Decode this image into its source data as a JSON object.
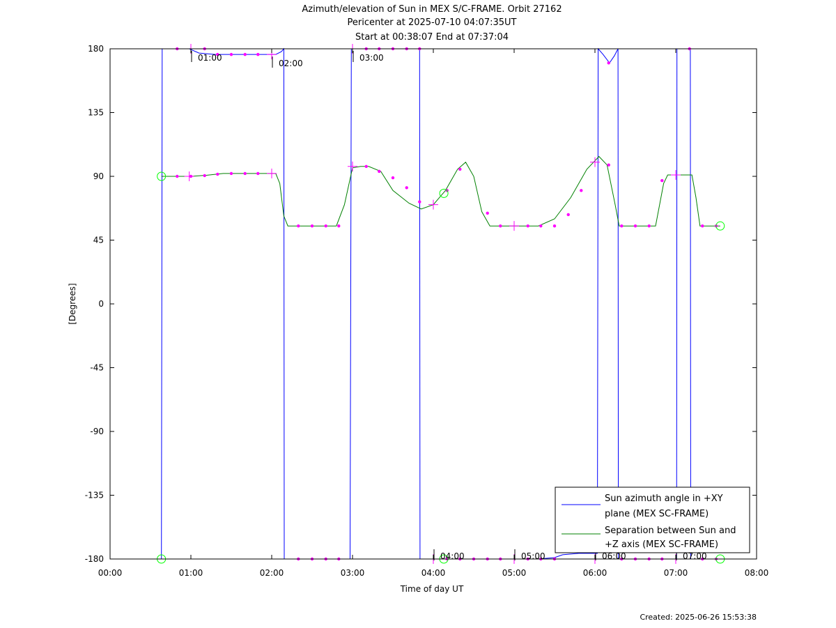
{
  "chart_data": {
    "type": "line",
    "title_lines": [
      "Azimuth/elevation of Sun in MEX S/C-FRAME.  Orbit 27162",
      "Pericenter at 2025-07-10 04:07:35UT",
      "Start at 00:38:07 End at 07:37:04"
    ],
    "xlabel": "Time of day UT",
    "ylabel": "[Degrees]",
    "xlim": [
      0,
      8
    ],
    "ylim": [
      -180,
      180
    ],
    "x_ticks": [
      0,
      1,
      2,
      3,
      4,
      5,
      6,
      7,
      8
    ],
    "x_tick_labels": [
      "00:00",
      "01:00",
      "02:00",
      "03:00",
      "04:00",
      "05:00",
      "06:00",
      "07:00",
      "08:00"
    ],
    "y_ticks": [
      180,
      135,
      90,
      45,
      0,
      -45,
      -90,
      -135,
      -180
    ],
    "y_tick_labels": [
      "180",
      "135",
      "90",
      "45",
      "0",
      "-45",
      "-90",
      "-135",
      "-180"
    ],
    "grid": false,
    "legend_position": "bottom-right",
    "hour_annotations": [
      {
        "label": "01:00",
        "x": 1.0,
        "y": 180
      },
      {
        "label": "02:00",
        "x": 2.0,
        "y": 176
      },
      {
        "label": "03:00",
        "x": 3.0,
        "y": 180
      },
      {
        "label": "04:00",
        "x": 4.0,
        "y": -180
      },
      {
        "label": "05:00",
        "x": 5.0,
        "y": -180
      },
      {
        "label": "06:00",
        "x": 6.0,
        "y": -180
      },
      {
        "label": "07:00",
        "x": 7.0,
        "y": -180
      }
    ],
    "series": [
      {
        "name": "Sun azimuth angle in +XY plane (MEX SC-FRAME)",
        "name_lines": [
          "Sun azimuth angle in +XY",
          "plane (MEX SC-FRAME)"
        ],
        "color": "#0000ff",
        "points": [
          [
            0.635,
            -180
          ],
          [
            0.645,
            180
          ],
          [
            0.8,
            180
          ],
          [
            0.98,
            180
          ],
          [
            1.1,
            177
          ],
          [
            1.3,
            176
          ],
          [
            1.6,
            176
          ],
          [
            1.9,
            176
          ],
          [
            2.05,
            176
          ],
          [
            2.12,
            178
          ],
          [
            2.15,
            180
          ],
          [
            2.155,
            -180
          ],
          [
            2.3,
            -180
          ],
          [
            2.6,
            -180
          ],
          [
            2.97,
            -180
          ],
          [
            2.985,
            180
          ],
          [
            3.3,
            180
          ],
          [
            3.83,
            180
          ],
          [
            3.835,
            -180
          ],
          [
            4.2,
            -180
          ],
          [
            4.8,
            -180
          ],
          [
            5.3,
            -180
          ],
          [
            5.5,
            -179
          ],
          [
            5.6,
            -177
          ],
          [
            5.8,
            -176
          ],
          [
            6.03,
            -176
          ],
          [
            6.04,
            180
          ],
          [
            6.1,
            176
          ],
          [
            6.18,
            170
          ],
          [
            6.24,
            175
          ],
          [
            6.285,
            180
          ],
          [
            6.29,
            -180
          ],
          [
            6.6,
            -180
          ],
          [
            7.01,
            -180
          ],
          [
            7.015,
            180
          ],
          [
            7.18,
            180
          ],
          [
            7.185,
            -180
          ],
          [
            7.55,
            -180
          ]
        ]
      },
      {
        "name": "Separation between Sun and +Z axis (MEX SC-FRAME)",
        "name_lines": [
          "Separation between Sun and",
          "+Z axis (MEX SC-FRAME)"
        ],
        "color": "#008000",
        "points": [
          [
            0.635,
            90
          ],
          [
            0.8,
            90
          ],
          [
            1.0,
            90
          ],
          [
            1.2,
            90.8
          ],
          [
            1.4,
            92
          ],
          [
            1.6,
            92
          ],
          [
            1.8,
            92
          ],
          [
            2.05,
            92
          ],
          [
            2.1,
            85
          ],
          [
            2.15,
            62
          ],
          [
            2.2,
            55
          ],
          [
            2.6,
            55
          ],
          [
            2.8,
            55
          ],
          [
            2.9,
            70
          ],
          [
            3.0,
            96
          ],
          [
            3.1,
            97
          ],
          [
            3.2,
            97
          ],
          [
            3.35,
            93.5
          ],
          [
            3.5,
            80
          ],
          [
            3.7,
            71
          ],
          [
            3.85,
            67
          ],
          [
            4.0,
            70
          ],
          [
            4.15,
            80
          ],
          [
            4.3,
            95
          ],
          [
            4.4,
            100
          ],
          [
            4.5,
            90
          ],
          [
            4.6,
            65
          ],
          [
            4.7,
            55
          ],
          [
            5.0,
            55
          ],
          [
            5.3,
            55
          ],
          [
            5.5,
            60
          ],
          [
            5.7,
            75
          ],
          [
            5.9,
            95
          ],
          [
            6.05,
            104
          ],
          [
            6.15,
            98
          ],
          [
            6.25,
            70
          ],
          [
            6.3,
            55
          ],
          [
            6.6,
            55
          ],
          [
            6.75,
            55
          ],
          [
            6.85,
            85
          ],
          [
            6.9,
            91
          ],
          [
            7.1,
            91
          ],
          [
            7.2,
            91
          ],
          [
            7.25,
            75
          ],
          [
            7.3,
            55
          ],
          [
            7.55,
            55
          ]
        ]
      }
    ],
    "markers": {
      "color": "#ff00ff",
      "dots": [
        [
          0.83,
          90
        ],
        [
          1.0,
          90
        ],
        [
          1.17,
          90.5
        ],
        [
          1.33,
          91.5
        ],
        [
          1.5,
          92
        ],
        [
          1.67,
          92
        ],
        [
          1.83,
          92
        ],
        [
          2.33,
          55
        ],
        [
          2.5,
          55
        ],
        [
          2.67,
          55
        ],
        [
          2.83,
          55
        ],
        [
          3.17,
          97
        ],
        [
          3.33,
          93.5
        ],
        [
          3.5,
          89
        ],
        [
          3.67,
          82
        ],
        [
          3.83,
          72
        ],
        [
          4.17,
          80
        ],
        [
          4.33,
          95
        ],
        [
          4.67,
          64
        ],
        [
          4.83,
          55
        ],
        [
          5.17,
          55
        ],
        [
          5.33,
          55
        ],
        [
          5.5,
          55
        ],
        [
          5.67,
          63
        ],
        [
          5.83,
          80
        ],
        [
          6.17,
          98
        ],
        [
          6.33,
          55
        ],
        [
          6.5,
          55
        ],
        [
          6.67,
          55
        ],
        [
          6.83,
          87
        ],
        [
          7.33,
          55
        ],
        [
          7.5,
          55
        ],
        [
          0.83,
          180
        ],
        [
          1.17,
          180
        ],
        [
          1.33,
          176
        ],
        [
          1.5,
          176
        ],
        [
          1.67,
          176
        ],
        [
          1.83,
          176
        ],
        [
          3.17,
          180
        ],
        [
          3.33,
          180
        ],
        [
          3.5,
          180
        ],
        [
          3.67,
          180
        ],
        [
          3.83,
          180
        ],
        [
          6.17,
          170
        ],
        [
          7.17,
          180
        ],
        [
          2.33,
          -180
        ],
        [
          2.5,
          -180
        ],
        [
          2.67,
          -180
        ],
        [
          2.83,
          -180
        ],
        [
          4.17,
          -180
        ],
        [
          4.33,
          -180
        ],
        [
          4.5,
          -180
        ],
        [
          4.67,
          -180
        ],
        [
          4.83,
          -180
        ],
        [
          5.17,
          -180
        ],
        [
          5.33,
          -180
        ],
        [
          5.5,
          -180
        ],
        [
          6.33,
          -180
        ],
        [
          6.5,
          -180
        ],
        [
          6.67,
          -180
        ],
        [
          6.83,
          -180
        ],
        [
          7.33,
          -180
        ],
        [
          7.5,
          -180
        ]
      ],
      "crosses": [
        [
          0.98,
          90
        ],
        [
          1.0,
          180
        ],
        [
          2.0,
          92
        ],
        [
          2.0,
          176
        ],
        [
          3.0,
          97
        ],
        [
          3.0,
          180
        ],
        [
          4.0,
          70
        ],
        [
          4.0,
          -180
        ],
        [
          5.0,
          55
        ],
        [
          5.0,
          -180
        ],
        [
          6.0,
          100
        ],
        [
          6.0,
          -180
        ],
        [
          7.0,
          91
        ],
        [
          7.0,
          -180
        ]
      ],
      "circle_color": "#00ff00",
      "circles": [
        [
          0.635,
          90
        ],
        [
          0.635,
          -180
        ],
        [
          4.13,
          78
        ],
        [
          4.13,
          -180
        ],
        [
          7.55,
          55
        ],
        [
          7.55,
          -180
        ]
      ]
    }
  },
  "footer": {
    "created": "Created: 2025-06-26 15:53:38"
  }
}
